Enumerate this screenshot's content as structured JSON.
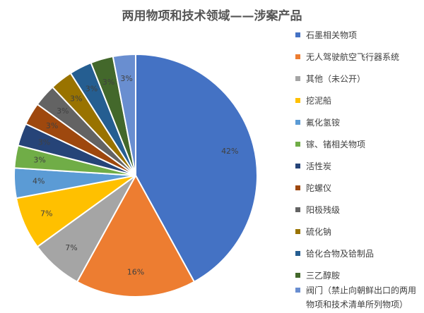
{
  "chart_data": {
    "type": "pie",
    "title": "两用物项和技术领域——涉案产品",
    "categories": [
      "石墨相关物项",
      "无人驾驶航空飞行器系统",
      "其他（未公开）",
      "挖泥船",
      "氟化氢铵",
      "镓、锗相关物项",
      "活性炭",
      "陀螺仪",
      "阳极残级",
      "硫化钠",
      "铪化合物及铪制品",
      "三乙醇胺",
      "阀门（禁止向朝鲜出口的两用物项和技术清单所列物项）"
    ],
    "values": [
      42,
      16,
      7,
      7,
      4,
      3,
      3,
      3,
      3,
      3,
      3,
      3,
      3
    ],
    "value_labels": [
      "42%",
      "16%",
      "7%",
      "7%",
      "4%",
      "3%",
      "3%",
      "3%",
      "3%",
      "3%",
      "3%",
      "3%",
      "3%"
    ],
    "colors": [
      "#4472C4",
      "#ED7D31",
      "#A5A5A5",
      "#FFC000",
      "#5B9BD5",
      "#70AD47",
      "#264478",
      "#9E480E",
      "#636363",
      "#997300",
      "#255E91",
      "#43682B",
      "#698ED0"
    ],
    "legend": "right"
  }
}
